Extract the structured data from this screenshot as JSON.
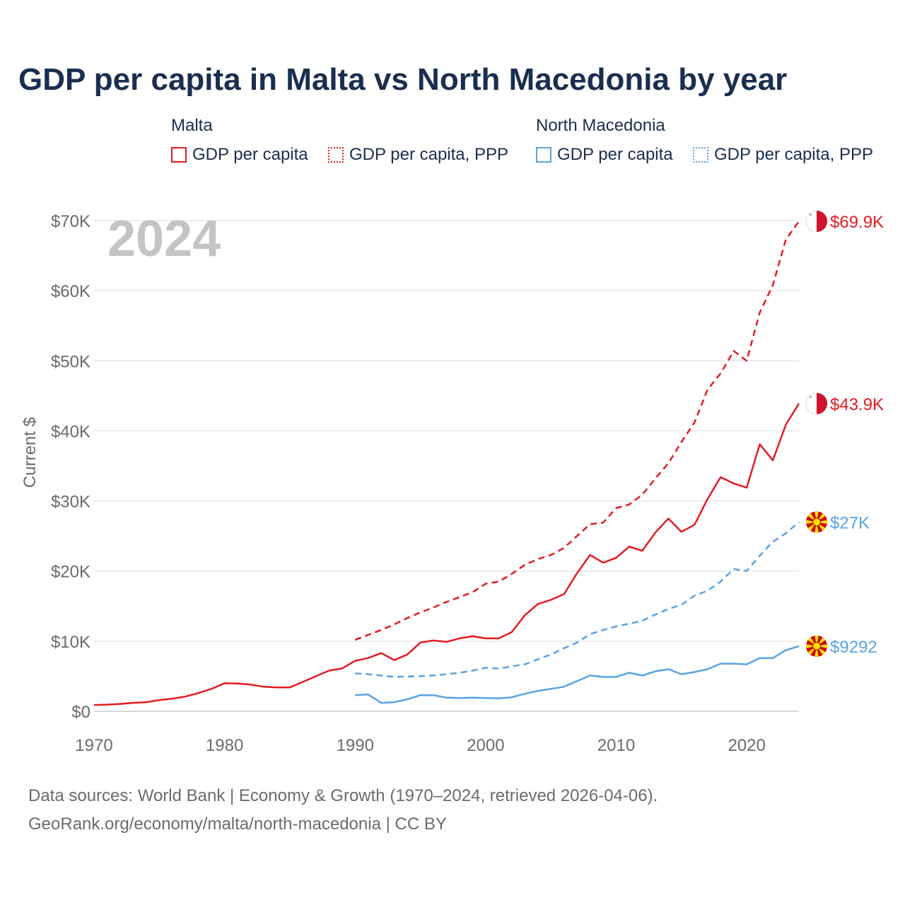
{
  "title": "GDP per capita in Malta vs North Macedonia by year",
  "legend": {
    "groups": [
      {
        "country": "Malta",
        "items": [
          {
            "label": "GDP per capita",
            "style": "solid"
          },
          {
            "label": "GDP per capita, PPP",
            "style": "dotted"
          }
        ],
        "color": "#e31b23"
      },
      {
        "country": "North Macedonia",
        "items": [
          {
            "label": "GDP per capita",
            "style": "solid"
          },
          {
            "label": "GDP per capita, PPP",
            "style": "dotted"
          }
        ],
        "color": "#5ba3e0"
      }
    ]
  },
  "year_label": "2024",
  "source_line1": "Data sources: World Bank | Economy & Growth (1970–2024, retrieved 2026-04-06).",
  "source_line2": "GeoRank.org/economy/malta/north-macedonia | CC BY",
  "chart_data": {
    "type": "line",
    "title": "GDP per capita in Malta vs North Macedonia by year",
    "ylabel": "Current $",
    "xlabel": "",
    "xlim": [
      1970,
      2024
    ],
    "ylim": [
      0,
      70000
    ],
    "yticks": [
      0,
      10000,
      20000,
      30000,
      40000,
      50000,
      60000,
      70000
    ],
    "ytick_labels": [
      "$0",
      "$10K",
      "$20K",
      "$30K",
      "$40K",
      "$50K",
      "$60K",
      "$70K"
    ],
    "xticks": [
      1970,
      1980,
      1990,
      2000,
      2010,
      2020
    ],
    "xtick_labels": [
      "1970",
      "1980",
      "1990",
      "2000",
      "2010",
      "2020"
    ],
    "grid": true,
    "series": [
      {
        "name": "Malta GDP per capita, PPP",
        "country": "Malta",
        "color": "#e31b23",
        "dash": true,
        "end_label": "$69.9K",
        "x": [
          1990,
          1991,
          1992,
          1993,
          1994,
          1995,
          1996,
          1997,
          1998,
          1999,
          2000,
          2001,
          2002,
          2003,
          2004,
          2005,
          2006,
          2007,
          2008,
          2009,
          2010,
          2011,
          2012,
          2013,
          2014,
          2015,
          2016,
          2017,
          2018,
          2019,
          2020,
          2021,
          2022,
          2023,
          2024
        ],
        "values": [
          10200,
          10900,
          11600,
          12400,
          13300,
          14100,
          14800,
          15600,
          16300,
          17000,
          18200,
          18500,
          19600,
          20900,
          21700,
          22300,
          23300,
          25000,
          26700,
          26900,
          29000,
          29500,
          30900,
          33200,
          35400,
          38400,
          41200,
          45900,
          48200,
          51400,
          50000,
          56900,
          60800,
          67300,
          69900
        ]
      },
      {
        "name": "Malta GDP per capita",
        "country": "Malta",
        "color": "#e31b23",
        "dash": false,
        "end_label": "$43.9K",
        "x": [
          1970,
          1971,
          1972,
          1973,
          1974,
          1975,
          1976,
          1977,
          1978,
          1979,
          1980,
          1981,
          1982,
          1983,
          1984,
          1985,
          1986,
          1987,
          1988,
          1989,
          1990,
          1991,
          1992,
          1993,
          1994,
          1995,
          1996,
          1997,
          1998,
          1999,
          2000,
          2001,
          2002,
          2003,
          2004,
          2005,
          2006,
          2007,
          2008,
          2009,
          2010,
          2011,
          2012,
          2013,
          2014,
          2015,
          2016,
          2017,
          2018,
          2019,
          2020,
          2021,
          2022,
          2023,
          2024
        ],
        "values": [
          900,
          950,
          1050,
          1200,
          1300,
          1600,
          1800,
          2100,
          2600,
          3200,
          4000,
          3950,
          3800,
          3500,
          3400,
          3400,
          4200,
          5000,
          5800,
          6100,
          7200,
          7600,
          8300,
          7300,
          8100,
          9800,
          10100,
          9900,
          10400,
          10700,
          10400,
          10400,
          11300,
          13700,
          15300,
          15900,
          16700,
          19700,
          22300,
          21200,
          21900,
          23500,
          22900,
          25500,
          27500,
          25600,
          26600,
          30300,
          33400,
          32500,
          31900,
          38100,
          35800,
          40900,
          43900
        ]
      },
      {
        "name": "North Macedonia GDP per capita, PPP",
        "country": "North Macedonia",
        "color": "#5ba3e0",
        "dash": true,
        "end_label": "$27K",
        "x": [
          1990,
          1991,
          1992,
          1993,
          1994,
          1995,
          1996,
          1997,
          1998,
          1999,
          2000,
          2001,
          2002,
          2003,
          2004,
          2005,
          2006,
          2007,
          2008,
          2009,
          2010,
          2011,
          2012,
          2013,
          2014,
          2015,
          2016,
          2017,
          2018,
          2019,
          2020,
          2021,
          2022,
          2023,
          2024
        ],
        "values": [
          5400,
          5300,
          5100,
          4900,
          4950,
          5000,
          5100,
          5300,
          5500,
          5800,
          6200,
          6100,
          6400,
          6700,
          7400,
          8100,
          9000,
          9800,
          11000,
          11600,
          12100,
          12500,
          12900,
          13800,
          14600,
          15200,
          16500,
          17200,
          18500,
          20300,
          20000,
          22200,
          24200,
          25400,
          27000
        ]
      },
      {
        "name": "North Macedonia GDP per capita",
        "country": "North Macedonia",
        "color": "#5ba3e0",
        "dash": false,
        "end_label": "$9292",
        "x": [
          1990,
          1991,
          1992,
          1993,
          1994,
          1995,
          1996,
          1997,
          1998,
          1999,
          2000,
          2001,
          2002,
          2003,
          2004,
          2005,
          2006,
          2007,
          2008,
          2009,
          2010,
          2011,
          2012,
          2013,
          2014,
          2015,
          2016,
          2017,
          2018,
          2019,
          2020,
          2021,
          2022,
          2023,
          2024
        ],
        "values": [
          2300,
          2400,
          1200,
          1300,
          1700,
          2300,
          2300,
          1950,
          1900,
          1950,
          1900,
          1850,
          2000,
          2500,
          2900,
          3200,
          3500,
          4300,
          5100,
          4900,
          4900,
          5500,
          5100,
          5700,
          6000,
          5300,
          5600,
          6000,
          6800,
          6800,
          6700,
          7600,
          7600,
          8700,
          9292
        ]
      }
    ]
  }
}
